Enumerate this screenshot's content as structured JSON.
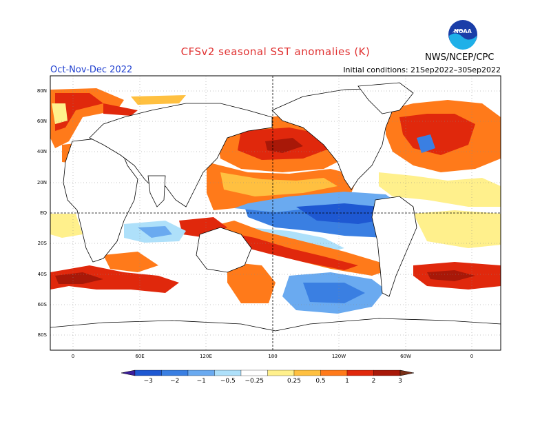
{
  "header": {
    "title": "CFSv2 seasonal SST anomalies (K)",
    "season": "Oct-Nov-Dec 2022",
    "initial_conditions": "Initial conditions: 21Sep2022–30Sep2022",
    "agency": "NWS/NCEP/CPC",
    "logo_text": "NOAA"
  },
  "map": {
    "lat_labels": [
      "80N",
      "60N",
      "40N",
      "20N",
      "EQ",
      "20S",
      "40S",
      "60S",
      "80S"
    ],
    "lon_labels": [
      "0",
      "60E",
      "120E",
      "180",
      "120W",
      "60W",
      "0"
    ]
  },
  "colorbar": {
    "labels": [
      "−3",
      "−2",
      "−1",
      "−0.5",
      "−0.25",
      "0.25",
      "0.5",
      "1",
      "2",
      "3"
    ],
    "colors": [
      "#3c1e9c",
      "#1e58d2",
      "#3a7fe2",
      "#6aaaf0",
      "#aee0fa",
      "#ffffff",
      "#fff08c",
      "#ffc040",
      "#ff7a1a",
      "#e0280c",
      "#a81808",
      "#7a3018"
    ]
  }
}
